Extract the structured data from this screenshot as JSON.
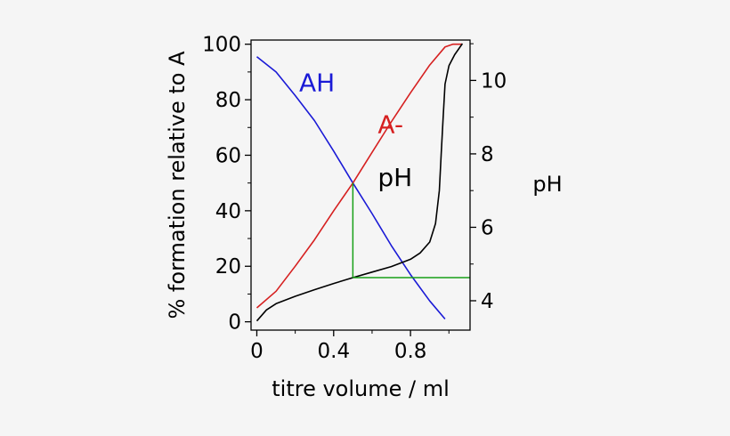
{
  "chart_data": {
    "type": "line",
    "xlabel": "titre volume / ml",
    "ylabel_left": "% formation relative to A",
    "ylabel_right": "pH",
    "xlim": [
      -0.03,
      1.11
    ],
    "ylim_left": [
      -3,
      101.5
    ],
    "ylim_right": [
      3.2,
      11.1
    ],
    "x_ticks": [
      0,
      0.4,
      0.8
    ],
    "x_tick_labels": [
      "0",
      "0.4",
      "0.8"
    ],
    "y_left_ticks": [
      0,
      20,
      40,
      60,
      80,
      100
    ],
    "y_left_tick_labels": [
      "0",
      "20",
      "40",
      "60",
      "80",
      "100"
    ],
    "y_right_ticks": [
      4,
      6,
      8,
      10
    ],
    "y_right_tick_labels": [
      "4",
      "6",
      "8",
      "10"
    ],
    "grid": false,
    "series": [
      {
        "name": "AH",
        "axis": "left",
        "color": "#1a1ad6",
        "x": [
          0.0,
          0.1,
          0.2,
          0.3,
          0.4,
          0.5,
          0.6,
          0.7,
          0.8,
          0.9,
          0.98
        ],
        "y": [
          95.5,
          90,
          81.5,
          72.5,
          61.5,
          50,
          39,
          27.5,
          17,
          7.5,
          1
        ]
      },
      {
        "name": "A-",
        "axis": "left",
        "color": "#d62020",
        "x": [
          0.0,
          0.1,
          0.2,
          0.3,
          0.4,
          0.5,
          0.6,
          0.7,
          0.8,
          0.9,
          0.98,
          1.02,
          1.07
        ],
        "y": [
          5,
          11,
          20,
          29.5,
          40,
          50,
          61,
          72,
          82.5,
          92.5,
          99,
          100,
          100
        ]
      },
      {
        "name": "pH",
        "axis": "right",
        "color": "#000000",
        "x": [
          0.0,
          0.05,
          0.1,
          0.2,
          0.3,
          0.4,
          0.5,
          0.6,
          0.7,
          0.8,
          0.85,
          0.9,
          0.93,
          0.95,
          0.96,
          0.97,
          0.98,
          1.0,
          1.03,
          1.07
        ],
        "y": [
          3.45,
          3.75,
          3.92,
          4.12,
          4.3,
          4.47,
          4.63,
          4.78,
          4.93,
          5.13,
          5.3,
          5.6,
          6.1,
          7.0,
          8.0,
          9.0,
          9.9,
          10.4,
          10.7,
          11.0
        ]
      }
    ],
    "guide_lines": {
      "color": "#18a018",
      "x": 0.5,
      "y_left": 50,
      "y_right": 4.63
    },
    "annotations": [
      {
        "text": "AH",
        "color": "#1a1ad6",
        "x": 0.22,
        "y": 83
      },
      {
        "text": "A-",
        "color": "#d62020",
        "x": 0.63,
        "y": 68
      },
      {
        "text": "pH",
        "color": "#000000",
        "x": 0.63,
        "y": 49
      }
    ]
  }
}
